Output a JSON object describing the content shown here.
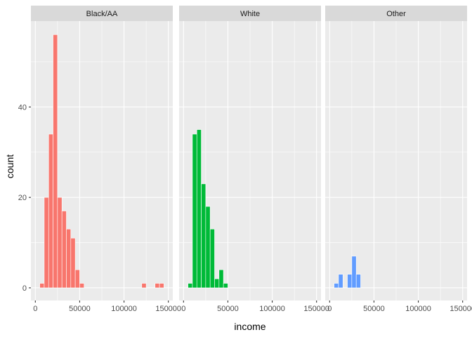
{
  "chart_data": {
    "type": "bar",
    "xlabel": "income",
    "ylabel": "count",
    "xlim": [
      -5000,
      155000
    ],
    "ylim": [
      -2.8,
      59
    ],
    "x_ticks": [
      0,
      50000,
      100000,
      150000
    ],
    "x_tick_labels": [
      "0",
      "50000",
      "100000",
      "150000"
    ],
    "y_ticks": [
      0,
      20,
      40
    ],
    "y_tick_labels": [
      "0",
      "20",
      "40"
    ],
    "grid": true,
    "legend": "none",
    "bin_width": 5000,
    "panels": [
      {
        "label": "Black/AA",
        "color": "#F8766D",
        "bins": [
          {
            "x": 7500,
            "count": 1
          },
          {
            "x": 12500,
            "count": 20
          },
          {
            "x": 17500,
            "count": 34
          },
          {
            "x": 22500,
            "count": 56
          },
          {
            "x": 27500,
            "count": 20
          },
          {
            "x": 32500,
            "count": 17
          },
          {
            "x": 37500,
            "count": 13
          },
          {
            "x": 42500,
            "count": 11
          },
          {
            "x": 47500,
            "count": 4
          },
          {
            "x": 52500,
            "count": 1
          },
          {
            "x": 122500,
            "count": 1
          },
          {
            "x": 137500,
            "count": 1
          },
          {
            "x": 142500,
            "count": 1
          }
        ]
      },
      {
        "label": "White",
        "color": "#00BA38",
        "bins": [
          {
            "x": 7500,
            "count": 1
          },
          {
            "x": 12500,
            "count": 34
          },
          {
            "x": 17500,
            "count": 35
          },
          {
            "x": 22500,
            "count": 23
          },
          {
            "x": 27500,
            "count": 18
          },
          {
            "x": 32500,
            "count": 13
          },
          {
            "x": 37500,
            "count": 2
          },
          {
            "x": 42500,
            "count": 4
          },
          {
            "x": 47500,
            "count": 1
          }
        ]
      },
      {
        "label": "Other",
        "color": "#619CFF",
        "bins": [
          {
            "x": 7500,
            "count": 1
          },
          {
            "x": 12500,
            "count": 3
          },
          {
            "x": 22500,
            "count": 3
          },
          {
            "x": 27500,
            "count": 7
          },
          {
            "x": 32500,
            "count": 3
          }
        ]
      }
    ]
  }
}
